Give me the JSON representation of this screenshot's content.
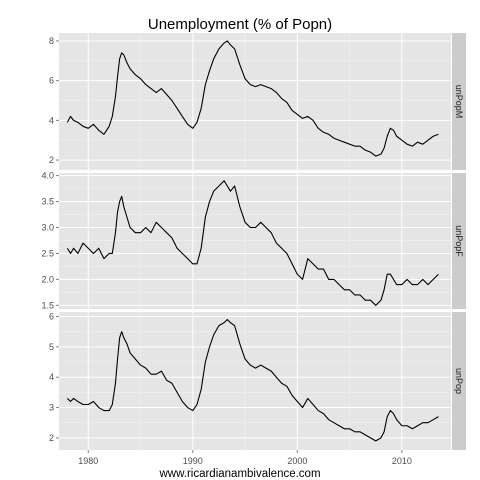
{
  "chart_data": {
    "type": "line",
    "title": "Unemployment (% of Popn)",
    "caption": "www.ricardianambivalence.com",
    "xlabel": "",
    "ylabel": "",
    "xlim": [
      1977.2,
      2014.7
    ],
    "x_ticks": [
      1980,
      1990,
      2000,
      2010
    ],
    "grid": true,
    "facet_layout": "vertical, shared x-axis, strip labels on right",
    "colors": {
      "panel_bg": "#e5e5e5",
      "grid_major": "#ffffff",
      "strip_bg": "#cccccc",
      "line": "#000000"
    },
    "panels": [
      {
        "strip": "unPopM",
        "ylim": [
          1.5,
          8.4
        ],
        "y_ticks": [
          2,
          4,
          6,
          8
        ],
        "x": [
          1978.0,
          1978.3,
          1978.6,
          1979.0,
          1979.5,
          1980.0,
          1980.5,
          1981.0,
          1981.5,
          1982.0,
          1982.3,
          1982.6,
          1982.8,
          1983.0,
          1983.2,
          1983.4,
          1983.7,
          1984.0,
          1984.5,
          1985.0,
          1985.5,
          1986.0,
          1986.5,
          1987.0,
          1987.5,
          1988.0,
          1988.5,
          1989.0,
          1989.5,
          1990.0,
          1990.4,
          1990.8,
          1991.2,
          1991.6,
          1992.0,
          1992.5,
          1993.0,
          1993.3,
          1993.6,
          1994.0,
          1994.5,
          1995.0,
          1995.5,
          1996.0,
          1996.5,
          1997.0,
          1997.5,
          1998.0,
          1998.5,
          1999.0,
          1999.5,
          2000.0,
          2000.5,
          2001.0,
          2001.5,
          2002.0,
          2002.5,
          2003.0,
          2003.5,
          2004.0,
          2004.5,
          2005.0,
          2005.5,
          2006.0,
          2006.5,
          2007.0,
          2007.5,
          2008.0,
          2008.3,
          2008.6,
          2008.9,
          2009.2,
          2009.5,
          2010.0,
          2010.5,
          2011.0,
          2011.5,
          2012.0,
          2012.5,
          2013.0,
          2013.5
        ],
        "y": [
          3.9,
          4.2,
          4.0,
          3.9,
          3.7,
          3.6,
          3.8,
          3.5,
          3.3,
          3.7,
          4.2,
          5.2,
          6.2,
          7.1,
          7.4,
          7.3,
          6.9,
          6.6,
          6.3,
          6.1,
          5.8,
          5.6,
          5.4,
          5.6,
          5.3,
          5.0,
          4.6,
          4.2,
          3.8,
          3.6,
          3.9,
          4.6,
          5.8,
          6.5,
          7.1,
          7.6,
          7.9,
          8.0,
          7.8,
          7.6,
          6.8,
          6.1,
          5.8,
          5.7,
          5.8,
          5.7,
          5.6,
          5.4,
          5.1,
          4.9,
          4.5,
          4.3,
          4.1,
          4.2,
          4.0,
          3.6,
          3.4,
          3.3,
          3.1,
          3.0,
          2.9,
          2.8,
          2.7,
          2.7,
          2.5,
          2.4,
          2.2,
          2.3,
          2.6,
          3.2,
          3.6,
          3.5,
          3.2,
          3.0,
          2.8,
          2.7,
          2.9,
          2.8,
          3.0,
          3.2,
          3.3
        ]
      },
      {
        "strip": "unPopF",
        "ylim": [
          1.43,
          4.05
        ],
        "y_ticks": [
          1.5,
          2.0,
          2.5,
          3.0,
          3.5,
          4.0
        ],
        "y_tick_labels": [
          "1.5",
          "2.0",
          "2.5",
          "3.0",
          "3.5",
          "4.0"
        ],
        "x": [
          1978.0,
          1978.3,
          1978.6,
          1979.0,
          1979.5,
          1980.0,
          1980.5,
          1981.0,
          1981.5,
          1982.0,
          1982.3,
          1982.6,
          1982.8,
          1983.0,
          1983.2,
          1983.4,
          1983.7,
          1984.0,
          1984.5,
          1985.0,
          1985.5,
          1986.0,
          1986.5,
          1987.0,
          1987.5,
          1988.0,
          1988.5,
          1989.0,
          1989.5,
          1990.0,
          1990.4,
          1990.8,
          1991.2,
          1991.6,
          1992.0,
          1992.5,
          1993.0,
          1993.3,
          1993.6,
          1994.0,
          1994.5,
          1995.0,
          1995.5,
          1996.0,
          1996.5,
          1997.0,
          1997.5,
          1998.0,
          1998.5,
          1999.0,
          1999.5,
          2000.0,
          2000.5,
          2001.0,
          2001.5,
          2002.0,
          2002.5,
          2003.0,
          2003.5,
          2004.0,
          2004.5,
          2005.0,
          2005.5,
          2006.0,
          2006.5,
          2007.0,
          2007.5,
          2008.0,
          2008.3,
          2008.6,
          2008.9,
          2009.2,
          2009.5,
          2010.0,
          2010.5,
          2011.0,
          2011.5,
          2012.0,
          2012.5,
          2013.0,
          2013.5
        ],
        "y": [
          2.6,
          2.5,
          2.6,
          2.5,
          2.7,
          2.6,
          2.5,
          2.6,
          2.4,
          2.5,
          2.5,
          2.9,
          3.3,
          3.5,
          3.6,
          3.4,
          3.2,
          3.0,
          2.9,
          2.9,
          3.0,
          2.9,
          3.1,
          3.0,
          2.9,
          2.8,
          2.6,
          2.5,
          2.4,
          2.3,
          2.3,
          2.6,
          3.2,
          3.5,
          3.7,
          3.8,
          3.9,
          3.8,
          3.7,
          3.8,
          3.4,
          3.1,
          3.0,
          3.0,
          3.1,
          3.0,
          2.9,
          2.7,
          2.6,
          2.5,
          2.3,
          2.1,
          2.0,
          2.4,
          2.3,
          2.2,
          2.2,
          2.0,
          2.0,
          1.9,
          1.8,
          1.8,
          1.7,
          1.7,
          1.6,
          1.6,
          1.5,
          1.6,
          1.8,
          2.1,
          2.1,
          2.0,
          1.9,
          1.9,
          2.0,
          1.9,
          1.9,
          2.0,
          1.9,
          2.0,
          2.1
        ]
      },
      {
        "strip": "unPop",
        "ylim": [
          1.6,
          6.15
        ],
        "y_ticks": [
          2,
          3,
          4,
          5,
          6
        ],
        "x": [
          1978.0,
          1978.3,
          1978.6,
          1979.0,
          1979.5,
          1980.0,
          1980.5,
          1981.0,
          1981.5,
          1982.0,
          1982.3,
          1982.6,
          1982.8,
          1983.0,
          1983.2,
          1983.4,
          1983.7,
          1984.0,
          1984.5,
          1985.0,
          1985.5,
          1986.0,
          1986.5,
          1987.0,
          1987.5,
          1988.0,
          1988.5,
          1989.0,
          1989.5,
          1990.0,
          1990.4,
          1990.8,
          1991.2,
          1991.6,
          1992.0,
          1992.5,
          1993.0,
          1993.3,
          1993.6,
          1994.0,
          1994.5,
          1995.0,
          1995.5,
          1996.0,
          1996.5,
          1997.0,
          1997.5,
          1998.0,
          1998.5,
          1999.0,
          1999.5,
          2000.0,
          2000.5,
          2001.0,
          2001.5,
          2002.0,
          2002.5,
          2003.0,
          2003.5,
          2004.0,
          2004.5,
          2005.0,
          2005.5,
          2006.0,
          2006.5,
          2007.0,
          2007.5,
          2008.0,
          2008.3,
          2008.6,
          2008.9,
          2009.2,
          2009.5,
          2010.0,
          2010.5,
          2011.0,
          2011.5,
          2012.0,
          2012.5,
          2013.0,
          2013.5
        ],
        "y": [
          3.3,
          3.2,
          3.3,
          3.2,
          3.1,
          3.1,
          3.2,
          3.0,
          2.9,
          2.9,
          3.1,
          3.8,
          4.6,
          5.3,
          5.5,
          5.3,
          5.1,
          4.8,
          4.6,
          4.4,
          4.3,
          4.1,
          4.1,
          4.2,
          3.9,
          3.8,
          3.5,
          3.2,
          3.0,
          2.9,
          3.1,
          3.6,
          4.5,
          5.0,
          5.4,
          5.7,
          5.8,
          5.9,
          5.8,
          5.7,
          5.1,
          4.6,
          4.4,
          4.3,
          4.4,
          4.3,
          4.2,
          4.0,
          3.8,
          3.7,
          3.4,
          3.2,
          3.0,
          3.3,
          3.1,
          2.9,
          2.8,
          2.6,
          2.5,
          2.4,
          2.3,
          2.3,
          2.2,
          2.2,
          2.1,
          2.0,
          1.9,
          2.0,
          2.2,
          2.7,
          2.9,
          2.8,
          2.6,
          2.4,
          2.4,
          2.3,
          2.4,
          2.5,
          2.5,
          2.6,
          2.7
        ]
      }
    ]
  }
}
